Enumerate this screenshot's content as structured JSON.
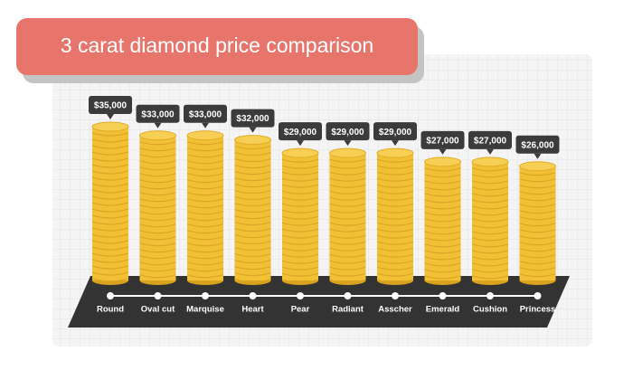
{
  "chart_data": {
    "type": "bar",
    "title": "3 carat diamond price comparison",
    "categories": [
      "Round",
      "Oval cut",
      "Marquise",
      "Heart",
      "Pear",
      "Radiant",
      "Asscher",
      "Emerald",
      "Cushion",
      "Princess"
    ],
    "values": [
      35000,
      33000,
      33000,
      32000,
      29000,
      29000,
      29000,
      27000,
      27000,
      26000
    ],
    "value_labels": [
      "$35,000",
      "$33,000",
      "$33,000",
      "$32,000",
      "$29,000",
      "$29,000",
      "$29,000",
      "$27,000",
      "$27,000",
      "$26,000"
    ],
    "color": "#f2c035"
  }
}
